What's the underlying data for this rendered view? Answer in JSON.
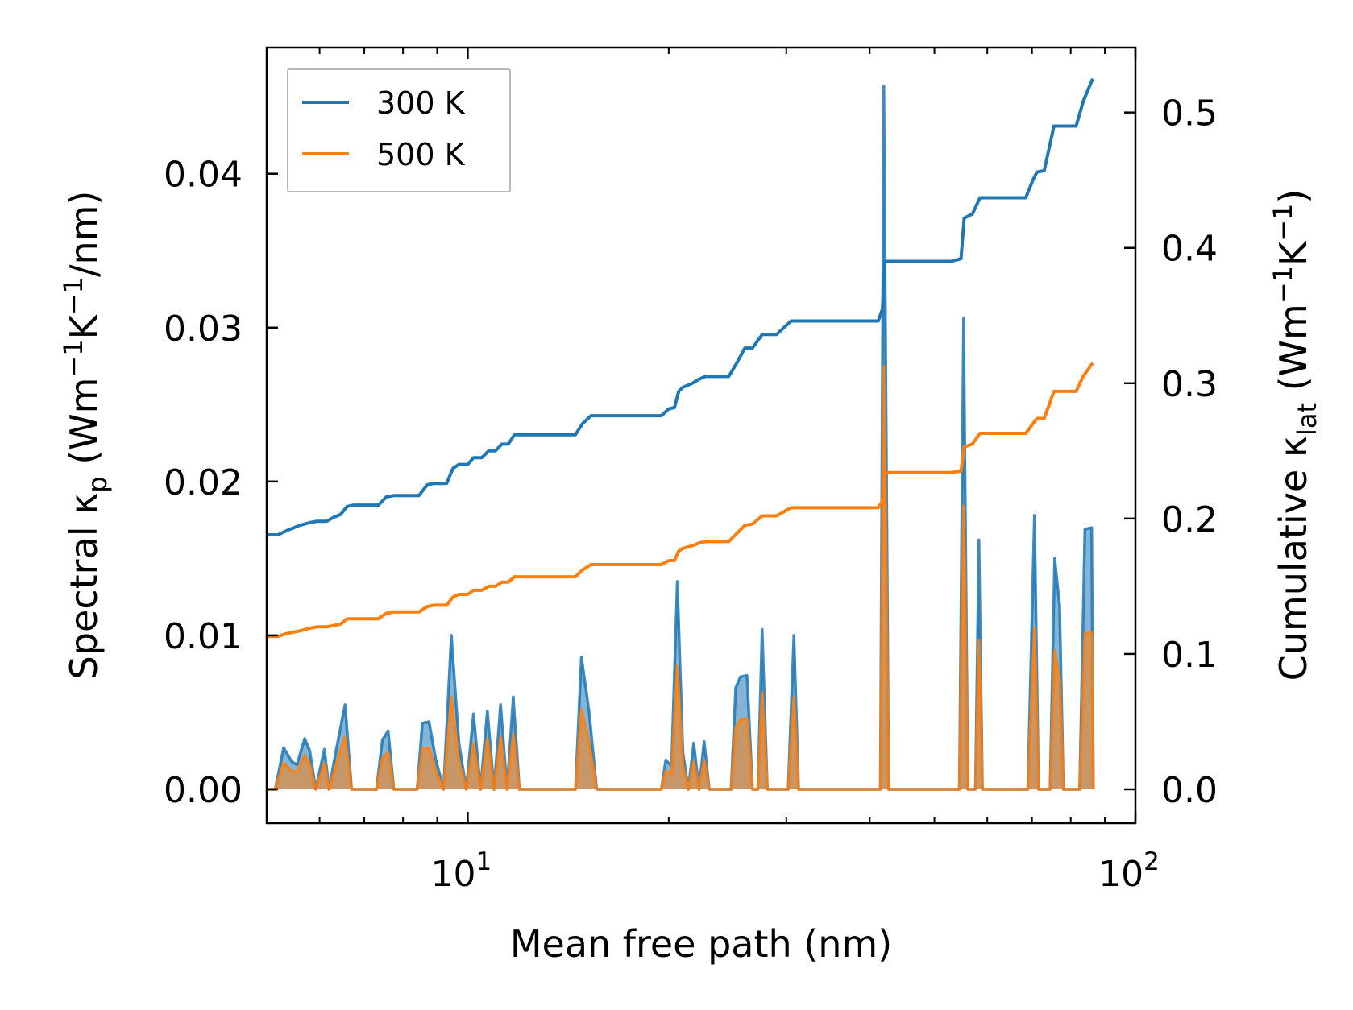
{
  "chart_data": {
    "type": "line",
    "x_scale": "log",
    "xlim": [
      5,
      100
    ],
    "xlabel": "Mean free path (nm)",
    "x_ticks": [
      {
        "value": 10,
        "base": "10",
        "exp": "1"
      },
      {
        "value": 100,
        "base": "10",
        "exp": "2"
      }
    ],
    "left_axis": {
      "label_prefix": "Spectral κ",
      "label_sub": "p",
      "label_unit_open": " (Wm",
      "label_exp1": "−1",
      "label_unit_mid": "K",
      "label_exp2": "−1",
      "label_unit_close": "/nm)",
      "ylim": [
        -0.0022,
        0.0482
      ],
      "ticks": [
        {
          "value": 0.0,
          "label": "0.00"
        },
        {
          "value": 0.01,
          "label": "0.01"
        },
        {
          "value": 0.02,
          "label": "0.02"
        },
        {
          "value": 0.03,
          "label": "0.03"
        },
        {
          "value": 0.04,
          "label": "0.04"
        }
      ]
    },
    "right_axis": {
      "label_prefix": "Cumulative κ",
      "label_sub": "lat",
      "label_unit_open": " (Wm",
      "label_exp1": "−1",
      "label_unit_mid": "K",
      "label_exp2": "−1",
      "label_unit_close": ")",
      "ylim": [
        -0.025,
        0.548
      ],
      "ticks": [
        {
          "value": 0.0,
          "label": "0.0"
        },
        {
          "value": 0.1,
          "label": "0.1"
        },
        {
          "value": 0.2,
          "label": "0.2"
        },
        {
          "value": 0.3,
          "label": "0.3"
        },
        {
          "value": 0.4,
          "label": "0.4"
        },
        {
          "value": 0.5,
          "label": "0.5"
        }
      ]
    },
    "legend": {
      "position": "top-left",
      "entries": [
        {
          "name": "300 K",
          "color": "#1f77b4"
        },
        {
          "name": "500 K",
          "color": "#ff7f0e"
        }
      ]
    },
    "series": [
      {
        "name": "300 K",
        "color": "#1f77b4",
        "spectral": [
          [
            5.0,
            0
          ],
          [
            5.15,
            0
          ],
          [
            5.3,
            0.0027
          ],
          [
            5.45,
            0.0018
          ],
          [
            5.55,
            0.0016
          ],
          [
            5.7,
            0.0033
          ],
          [
            5.8,
            0.0025
          ],
          [
            5.92,
            0
          ],
          [
            6.1,
            0.0026
          ],
          [
            6.2,
            0
          ],
          [
            6.35,
            0.0025
          ],
          [
            6.55,
            0.0055
          ],
          [
            6.7,
            0
          ],
          [
            7.3,
            0
          ],
          [
            7.45,
            0.0032
          ],
          [
            7.6,
            0.0038
          ],
          [
            7.75,
            0
          ],
          [
            8.4,
            0
          ],
          [
            8.55,
            0.0043
          ],
          [
            8.75,
            0.0044
          ],
          [
            8.95,
            0.002
          ],
          [
            9.2,
            0
          ],
          [
            9.45,
            0.01
          ],
          [
            9.7,
            0.003
          ],
          [
            9.95,
            0
          ],
          [
            10.2,
            0.0049
          ],
          [
            10.45,
            0
          ],
          [
            10.7,
            0.0051
          ],
          [
            10.95,
            0
          ],
          [
            11.2,
            0.0055
          ],
          [
            11.45,
            0
          ],
          [
            11.7,
            0.006
          ],
          [
            11.95,
            0
          ],
          [
            14.5,
            0
          ],
          [
            14.8,
            0.0086
          ],
          [
            15.2,
            0.005
          ],
          [
            15.6,
            0
          ],
          [
            19.5,
            0
          ],
          [
            19.8,
            0.0019
          ],
          [
            20.2,
            0.0015
          ],
          [
            20.6,
            0.0135
          ],
          [
            21.0,
            0.0024
          ],
          [
            21.4,
            0
          ],
          [
            21.8,
            0.003
          ],
          [
            22.2,
            0
          ],
          [
            22.6,
            0.0031
          ],
          [
            23.0,
            0
          ],
          [
            24.8,
            0
          ],
          [
            25.2,
            0.0066
          ],
          [
            25.6,
            0.0073
          ],
          [
            26.2,
            0.0074
          ],
          [
            26.7,
            0
          ],
          [
            27.2,
            0
          ],
          [
            27.6,
            0.0104
          ],
          [
            28.1,
            0
          ],
          [
            30.2,
            0
          ],
          [
            30.8,
            0.01
          ],
          [
            31.3,
            0
          ],
          [
            41.5,
            0
          ],
          [
            42.0,
            0.0457
          ],
          [
            42.7,
            0
          ],
          [
            54.5,
            0
          ],
          [
            55.3,
            0.0306
          ],
          [
            56.1,
            0
          ],
          [
            57.6,
            0
          ],
          [
            58.3,
            0.0162
          ],
          [
            59.0,
            0
          ],
          [
            69.0,
            0
          ],
          [
            70.6,
            0.0178
          ],
          [
            71.6,
            0
          ],
          [
            74.5,
            0
          ],
          [
            75.7,
            0.015
          ],
          [
            77.0,
            0.012
          ],
          [
            78.0,
            0
          ],
          [
            82.5,
            0
          ],
          [
            84.0,
            0.0169
          ],
          [
            86.0,
            0.017
          ],
          [
            86.5,
            0
          ]
        ],
        "cumulative": [
          [
            5.0,
            0.188
          ],
          [
            5.2,
            0.188
          ],
          [
            5.35,
            0.191
          ],
          [
            5.6,
            0.195
          ],
          [
            5.8,
            0.197
          ],
          [
            5.95,
            0.198
          ],
          [
            6.15,
            0.198
          ],
          [
            6.3,
            0.201
          ],
          [
            6.45,
            0.203
          ],
          [
            6.6,
            0.209
          ],
          [
            6.75,
            0.21
          ],
          [
            7.35,
            0.21
          ],
          [
            7.55,
            0.216
          ],
          [
            7.75,
            0.217
          ],
          [
            8.45,
            0.217
          ],
          [
            8.7,
            0.225
          ],
          [
            8.9,
            0.226
          ],
          [
            9.3,
            0.226
          ],
          [
            9.5,
            0.237
          ],
          [
            9.7,
            0.24
          ],
          [
            10.0,
            0.24
          ],
          [
            10.2,
            0.245
          ],
          [
            10.5,
            0.245
          ],
          [
            10.75,
            0.25
          ],
          [
            11.0,
            0.25
          ],
          [
            11.25,
            0.255
          ],
          [
            11.5,
            0.255
          ],
          [
            11.75,
            0.262
          ],
          [
            14.5,
            0.262
          ],
          [
            14.85,
            0.27
          ],
          [
            15.3,
            0.276
          ],
          [
            19.5,
            0.276
          ],
          [
            20.0,
            0.281
          ],
          [
            20.4,
            0.282
          ],
          [
            20.7,
            0.294
          ],
          [
            21.0,
            0.297
          ],
          [
            21.7,
            0.3
          ],
          [
            22.2,
            0.303
          ],
          [
            22.7,
            0.305
          ],
          [
            24.6,
            0.305
          ],
          [
            25.3,
            0.315
          ],
          [
            26.0,
            0.326
          ],
          [
            26.7,
            0.326
          ],
          [
            27.6,
            0.336
          ],
          [
            29.0,
            0.336
          ],
          [
            30.5,
            0.346
          ],
          [
            41.2,
            0.346
          ],
          [
            41.8,
            0.355
          ],
          [
            42.1,
            0.39
          ],
          [
            53.0,
            0.39
          ],
          [
            54.8,
            0.392
          ],
          [
            55.4,
            0.422
          ],
          [
            57.0,
            0.425
          ],
          [
            58.5,
            0.437
          ],
          [
            68.5,
            0.437
          ],
          [
            70.2,
            0.45
          ],
          [
            71.2,
            0.456
          ],
          [
            73.0,
            0.457
          ],
          [
            75.5,
            0.49
          ],
          [
            81.5,
            0.49
          ],
          [
            83.5,
            0.508
          ],
          [
            86.3,
            0.525
          ]
        ]
      },
      {
        "name": "500 K",
        "color": "#ff7f0e",
        "spectral": [
          [
            5.0,
            0
          ],
          [
            5.15,
            0
          ],
          [
            5.3,
            0.0017
          ],
          [
            5.45,
            0.0012
          ],
          [
            5.55,
            0.0011
          ],
          [
            5.7,
            0.0022
          ],
          [
            5.8,
            0.0016
          ],
          [
            5.92,
            0
          ],
          [
            6.1,
            0.0017
          ],
          [
            6.2,
            0
          ],
          [
            6.35,
            0.0016
          ],
          [
            6.55,
            0.0034
          ],
          [
            6.7,
            0
          ],
          [
            7.3,
            0
          ],
          [
            7.45,
            0.002
          ],
          [
            7.6,
            0.0024
          ],
          [
            7.75,
            0
          ],
          [
            8.4,
            0
          ],
          [
            8.55,
            0.0026
          ],
          [
            8.75,
            0.0027
          ],
          [
            8.95,
            0.0012
          ],
          [
            9.2,
            0
          ],
          [
            9.45,
            0.006
          ],
          [
            9.7,
            0.0018
          ],
          [
            9.95,
            0
          ],
          [
            10.2,
            0.003
          ],
          [
            10.45,
            0
          ],
          [
            10.7,
            0.0033
          ],
          [
            10.95,
            0
          ],
          [
            11.2,
            0.0034
          ],
          [
            11.45,
            0
          ],
          [
            11.7,
            0.0036
          ],
          [
            11.95,
            0
          ],
          [
            14.5,
            0
          ],
          [
            14.8,
            0.0052
          ],
          [
            15.2,
            0.003
          ],
          [
            15.6,
            0
          ],
          [
            19.5,
            0
          ],
          [
            19.8,
            0.0012
          ],
          [
            20.2,
            0.001
          ],
          [
            20.6,
            0.008
          ],
          [
            21.0,
            0.0015
          ],
          [
            21.4,
            0
          ],
          [
            21.8,
            0.0018
          ],
          [
            22.2,
            0
          ],
          [
            22.6,
            0.0019
          ],
          [
            23.0,
            0
          ],
          [
            24.8,
            0
          ],
          [
            25.2,
            0.004
          ],
          [
            25.6,
            0.0045
          ],
          [
            26.2,
            0.0046
          ],
          [
            26.7,
            0
          ],
          [
            27.2,
            0
          ],
          [
            27.6,
            0.0063
          ],
          [
            28.1,
            0
          ],
          [
            30.2,
            0
          ],
          [
            30.8,
            0.006
          ],
          [
            31.3,
            0
          ],
          [
            41.5,
            0
          ],
          [
            42.0,
            0.0275
          ],
          [
            42.7,
            0
          ],
          [
            54.5,
            0
          ],
          [
            55.3,
            0.0184
          ],
          [
            56.1,
            0
          ],
          [
            57.6,
            0
          ],
          [
            58.3,
            0.0097
          ],
          [
            59.0,
            0
          ],
          [
            69.0,
            0
          ],
          [
            70.6,
            0.0105
          ],
          [
            71.6,
            0
          ],
          [
            74.5,
            0
          ],
          [
            75.7,
            0.009
          ],
          [
            77.0,
            0.0072
          ],
          [
            78.0,
            0
          ],
          [
            82.5,
            0
          ],
          [
            84.0,
            0.0101
          ],
          [
            86.0,
            0.0102
          ],
          [
            86.5,
            0
          ]
        ],
        "cumulative": [
          [
            5.0,
            0.113
          ],
          [
            5.2,
            0.113
          ],
          [
            5.35,
            0.115
          ],
          [
            5.6,
            0.117
          ],
          [
            5.8,
            0.119
          ],
          [
            5.95,
            0.12
          ],
          [
            6.15,
            0.12
          ],
          [
            6.3,
            0.121
          ],
          [
            6.45,
            0.122
          ],
          [
            6.6,
            0.126
          ],
          [
            6.75,
            0.126
          ],
          [
            7.35,
            0.126
          ],
          [
            7.55,
            0.13
          ],
          [
            7.75,
            0.131
          ],
          [
            8.45,
            0.131
          ],
          [
            8.7,
            0.135
          ],
          [
            8.9,
            0.136
          ],
          [
            9.3,
            0.136
          ],
          [
            9.5,
            0.142
          ],
          [
            9.7,
            0.144
          ],
          [
            10.0,
            0.144
          ],
          [
            10.2,
            0.147
          ],
          [
            10.5,
            0.147
          ],
          [
            10.75,
            0.15
          ],
          [
            11.0,
            0.15
          ],
          [
            11.25,
            0.153
          ],
          [
            11.5,
            0.153
          ],
          [
            11.75,
            0.157
          ],
          [
            14.5,
            0.157
          ],
          [
            14.85,
            0.162
          ],
          [
            15.3,
            0.166
          ],
          [
            19.5,
            0.166
          ],
          [
            20.0,
            0.169
          ],
          [
            20.4,
            0.169
          ],
          [
            20.7,
            0.176
          ],
          [
            21.0,
            0.178
          ],
          [
            21.7,
            0.18
          ],
          [
            22.2,
            0.182
          ],
          [
            22.7,
            0.183
          ],
          [
            24.6,
            0.183
          ],
          [
            25.3,
            0.189
          ],
          [
            26.0,
            0.195
          ],
          [
            26.7,
            0.196
          ],
          [
            27.6,
            0.202
          ],
          [
            29.0,
            0.202
          ],
          [
            30.5,
            0.208
          ],
          [
            41.2,
            0.208
          ],
          [
            41.8,
            0.213
          ],
          [
            42.1,
            0.234
          ],
          [
            53.0,
            0.234
          ],
          [
            54.8,
            0.235
          ],
          [
            55.4,
            0.253
          ],
          [
            57.0,
            0.255
          ],
          [
            58.5,
            0.263
          ],
          [
            68.5,
            0.263
          ],
          [
            70.2,
            0.27
          ],
          [
            71.2,
            0.274
          ],
          [
            73.0,
            0.274
          ],
          [
            75.5,
            0.294
          ],
          [
            81.5,
            0.294
          ],
          [
            83.5,
            0.305
          ],
          [
            86.3,
            0.315
          ]
        ]
      }
    ]
  }
}
